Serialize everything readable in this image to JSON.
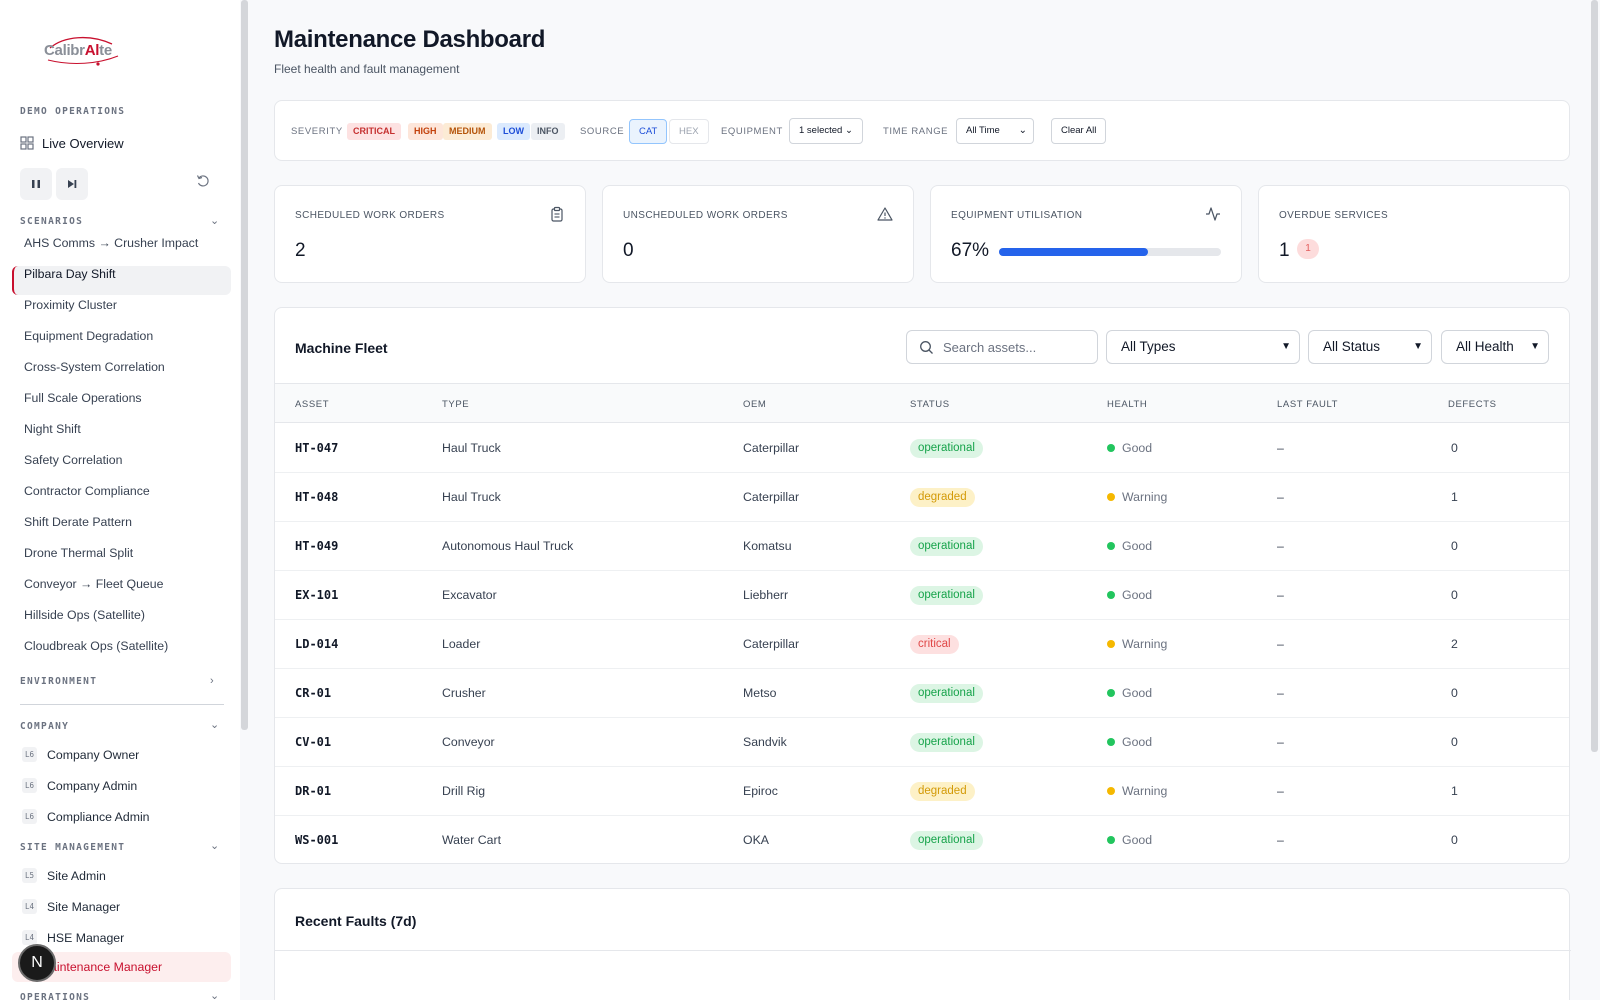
{
  "logo": {
    "text_a": "Calibr",
    "text_b": "Al",
    "text_c": "te"
  },
  "sidebar": {
    "demo_section": "Demo Operations",
    "live_overview": "Live Overview",
    "scenarios_section": "Scenarios",
    "scenarios": [
      "AHS Comms → Crusher Impact",
      "Pilbara Day Shift",
      "Proximity Cluster",
      "Equipment Degradation",
      "Cross-System Correlation",
      "Full Scale Operations",
      "Night Shift",
      "Safety Correlation",
      "Contractor Compliance",
      "Shift Derate Pattern",
      "Drone Thermal Split",
      "Conveyor → Fleet Queue",
      "Hillside Ops (Satellite)",
      "Cloudbreak Ops (Satellite)"
    ],
    "active_scenario": "Pilbara Day Shift",
    "environment_section": "Environment",
    "company_section": "Company",
    "company_roles": [
      {
        "level": "L6",
        "label": "Company Owner"
      },
      {
        "level": "L6",
        "label": "Company Admin"
      },
      {
        "level": "L6",
        "label": "Compliance Admin"
      }
    ],
    "site_section": "Site Management",
    "site_roles": [
      {
        "level": "L5",
        "label": "Site Admin"
      },
      {
        "level": "L4",
        "label": "Site Manager"
      },
      {
        "level": "L4",
        "label": "HSE Manager"
      }
    ],
    "active_role": "Maintenance Manager",
    "active_role_visible": "aintenance Manager",
    "operations_section": "Operations",
    "avatar_letter": "N"
  },
  "header": {
    "title": "Maintenance Dashboard",
    "subtitle": "Fleet health and fault management"
  },
  "filters": {
    "severity_label": "SEVERITY",
    "severities": [
      "CRITICAL",
      "HIGH",
      "MEDIUM",
      "LOW",
      "INFO"
    ],
    "source_label": "SOURCE",
    "sources": [
      "CAT",
      "HEX"
    ],
    "active_source": "CAT",
    "equipment_label": "EQUIPMENT",
    "equipment_value": "1 selected",
    "time_label": "TIME RANGE",
    "time_value": "All Time",
    "clear_all": "Clear All"
  },
  "stats": [
    {
      "label": "SCHEDULED WORK ORDERS",
      "value": "2",
      "icon": "clipboard-icon"
    },
    {
      "label": "UNSCHEDULED WORK ORDERS",
      "value": "0",
      "icon": "warning-triangle-icon"
    },
    {
      "label": "EQUIPMENT UTILISATION",
      "value": "67%",
      "progress": 0.67,
      "icon": "activity-pulse-icon"
    },
    {
      "label": "OVERDUE SERVICES",
      "value": "1",
      "badge": "1"
    }
  ],
  "fleet": {
    "title": "Machine Fleet",
    "search_placeholder": "Search assets...",
    "type_filter": "All Types",
    "status_filter": "All Status",
    "health_filter": "All Health",
    "columns": [
      "ASSET",
      "TYPE",
      "OEM",
      "STATUS",
      "HEALTH",
      "LAST FAULT",
      "DEFECTS"
    ],
    "rows": [
      {
        "asset": "HT-047",
        "type": "Haul Truck",
        "oem": "Caterpillar",
        "status": "operational",
        "health": "Good",
        "last_fault": "–",
        "defects": "0"
      },
      {
        "asset": "HT-048",
        "type": "Haul Truck",
        "oem": "Caterpillar",
        "status": "degraded",
        "health": "Warning",
        "last_fault": "–",
        "defects": "1"
      },
      {
        "asset": "HT-049",
        "type": "Autonomous Haul Truck",
        "oem": "Komatsu",
        "status": "operational",
        "health": "Good",
        "last_fault": "–",
        "defects": "0"
      },
      {
        "asset": "EX-101",
        "type": "Excavator",
        "oem": "Liebherr",
        "status": "operational",
        "health": "Good",
        "last_fault": "–",
        "defects": "0"
      },
      {
        "asset": "LD-014",
        "type": "Loader",
        "oem": "Caterpillar",
        "status": "critical",
        "health": "Warning",
        "last_fault": "–",
        "defects": "2"
      },
      {
        "asset": "CR-01",
        "type": "Crusher",
        "oem": "Metso",
        "status": "operational",
        "health": "Good",
        "last_fault": "–",
        "defects": "0"
      },
      {
        "asset": "CV-01",
        "type": "Conveyor",
        "oem": "Sandvik",
        "status": "operational",
        "health": "Good",
        "last_fault": "–",
        "defects": "0"
      },
      {
        "asset": "DR-01",
        "type": "Drill Rig",
        "oem": "Epiroc",
        "status": "degraded",
        "health": "Warning",
        "last_fault": "–",
        "defects": "1"
      },
      {
        "asset": "WS-001",
        "type": "Water Cart",
        "oem": "OKA",
        "status": "operational",
        "health": "Good",
        "last_fault": "–",
        "defects": "0"
      }
    ]
  },
  "faults": {
    "title": "Recent Faults (7d)"
  },
  "colors": {
    "brand": "#c8102e",
    "good": "#22c55e",
    "warning": "#f5b800",
    "progress": "#2563eb"
  }
}
